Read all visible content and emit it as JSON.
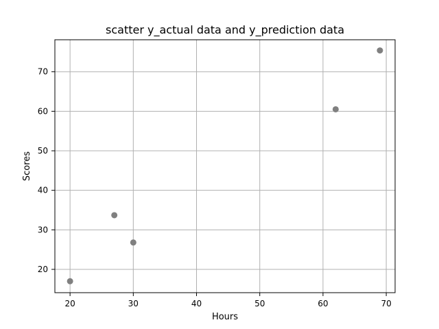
{
  "chart_data": {
    "type": "scatter",
    "title": "scatter y_actual data and y_prediction data",
    "xlabel": "Hours",
    "ylabel": "Scores",
    "x_ticks": [
      20,
      30,
      40,
      50,
      60,
      70
    ],
    "y_ticks": [
      20,
      30,
      40,
      50,
      60,
      70
    ],
    "xlim": [
      17.6,
      71.4
    ],
    "ylim": [
      14.1,
      78.1
    ],
    "grid": true,
    "marker_color": "#808080",
    "points": [
      {
        "x": 20,
        "y": 17.0
      },
      {
        "x": 27,
        "y": 33.7
      },
      {
        "x": 30,
        "y": 26.8
      },
      {
        "x": 62,
        "y": 60.5
      },
      {
        "x": 69,
        "y": 75.4
      }
    ]
  }
}
